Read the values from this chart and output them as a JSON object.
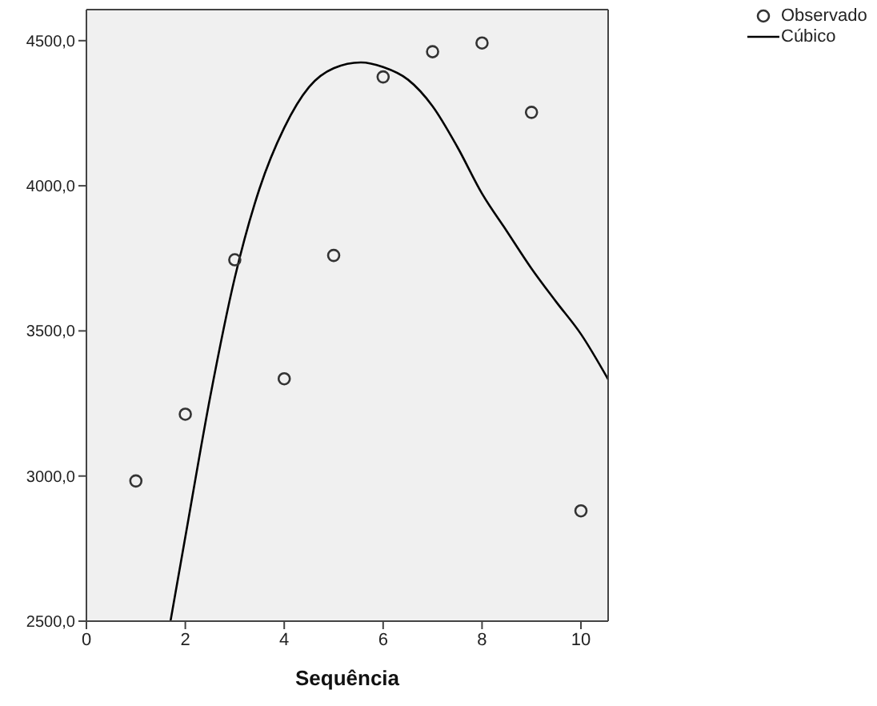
{
  "chart_data": {
    "type": "scatter",
    "xlabel": "Sequência",
    "xlim": [
      0,
      10.55
    ],
    "xticks": [
      0,
      2,
      4,
      6,
      8,
      10
    ],
    "ylim": [
      2500,
      4607
    ],
    "yticks": [
      {
        "value": 2500,
        "label": "2500,0"
      },
      {
        "value": 3000,
        "label": "3000,0"
      },
      {
        "value": 3500,
        "label": "3500,0"
      },
      {
        "value": 4000,
        "label": "4000,0"
      },
      {
        "value": 4500,
        "label": "4500,0"
      }
    ],
    "grid": false,
    "legend": "top right",
    "marker": "circle",
    "series": [
      {
        "name": "Observado",
        "color": "#333333",
        "x": [
          1,
          2,
          3,
          4,
          5,
          6,
          7,
          8,
          9,
          10
        ],
        "values": [
          2983,
          3213,
          3745,
          3335,
          3760,
          4375,
          4462,
          4492,
          4253,
          2880
        ]
      },
      {
        "name": "Cúbico",
        "type": "line",
        "color": "#000000",
        "marker": "none",
        "line_style": "solid",
        "x": [
          1.7,
          2,
          2.5,
          3,
          3.5,
          4,
          4.5,
          5,
          5.55,
          6,
          6.5,
          7,
          7.5,
          8,
          8.5,
          9,
          9.5,
          10,
          10.55
        ],
        "values": [
          2500,
          2790,
          3270,
          3683,
          3990,
          4200,
          4340,
          4405,
          4425,
          4409,
          4366,
          4274,
          4134,
          3973,
          3844,
          3715,
          3600,
          3489,
          3333
        ]
      }
    ]
  }
}
